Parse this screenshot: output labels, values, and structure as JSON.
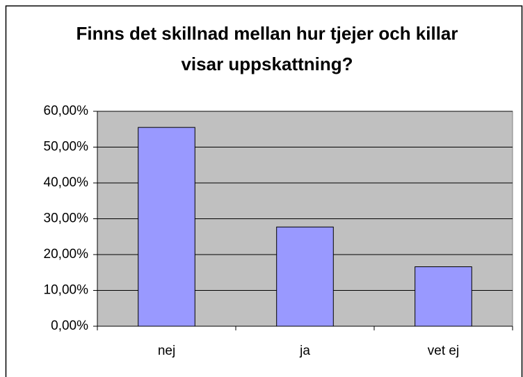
{
  "chart_data": {
    "type": "bar",
    "title": "Finns det skillnad mellan hur tjejer och killar visar uppskattning?",
    "categories": [
      "nej",
      "ja",
      "vet ej"
    ],
    "values": [
      55.5,
      27.7,
      16.6
    ],
    "color": "#9999ff",
    "ylim": [
      0,
      60
    ],
    "yticks": [
      {
        "value": 0,
        "label": "0,00%"
      },
      {
        "value": 10,
        "label": "10,00%"
      },
      {
        "value": 20,
        "label": "20,00%"
      },
      {
        "value": 30,
        "label": "30,00%"
      },
      {
        "value": 40,
        "label": "40,00%"
      },
      {
        "value": 50,
        "label": "50,00%"
      },
      {
        "value": 60,
        "label": "60,00%"
      }
    ],
    "grid": true
  }
}
